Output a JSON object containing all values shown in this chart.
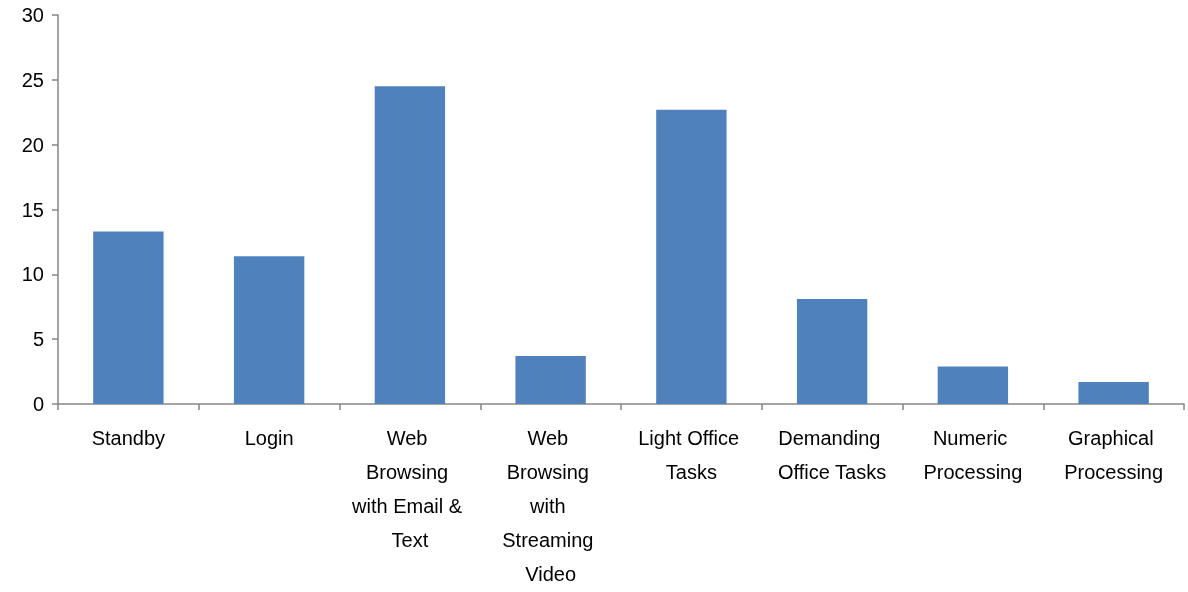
{
  "chart_data": {
    "type": "bar",
    "categories": [
      "Standby",
      "Login",
      "Web Browsing with Email & Text",
      "Web Browsing with Streaming Video",
      "Light Office Tasks",
      "Demanding Office Tasks",
      "Numeric Processing",
      "Graphical Processing"
    ],
    "values": [
      13.3,
      11.4,
      24.5,
      3.7,
      22.7,
      8.1,
      2.9,
      1.7
    ],
    "color": "#4f81bd",
    "ylim": [
      0,
      30
    ],
    "yticks": [
      0,
      5,
      10,
      15,
      20,
      25,
      30
    ]
  }
}
